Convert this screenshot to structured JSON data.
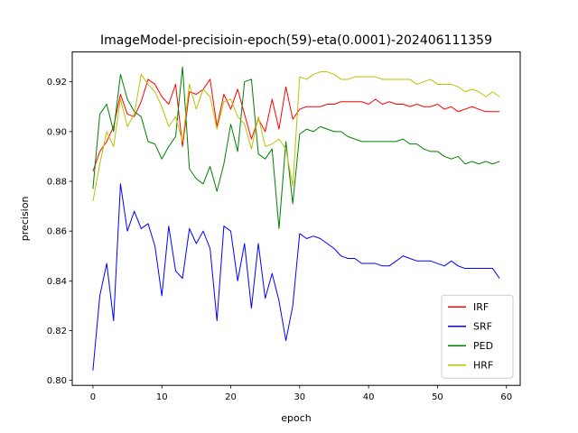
{
  "chart_data": {
    "type": "line",
    "title": "ImageModel-precisioin-epoch(59)-eta(0.0001)-202406111359",
    "xlabel": "epoch",
    "ylabel": "precision",
    "xlim": [
      -3,
      62
    ],
    "ylim": [
      0.798,
      0.932
    ],
    "xticks": [
      0,
      10,
      20,
      30,
      40,
      50,
      60
    ],
    "yticks": [
      0.8,
      0.82,
      0.84,
      0.86,
      0.88,
      0.9,
      0.92
    ],
    "ytick_labels": [
      "0.80",
      "0.82",
      "0.84",
      "0.86",
      "0.88",
      "0.90",
      "0.92"
    ],
    "grid": false,
    "legend": "lower-right",
    "x": [
      0,
      1,
      2,
      3,
      4,
      5,
      6,
      7,
      8,
      9,
      10,
      11,
      12,
      13,
      14,
      15,
      16,
      17,
      18,
      19,
      20,
      21,
      22,
      23,
      24,
      25,
      26,
      27,
      28,
      29,
      30,
      31,
      32,
      33,
      34,
      35,
      36,
      37,
      38,
      39,
      40,
      41,
      42,
      43,
      44,
      45,
      46,
      47,
      48,
      49,
      50,
      51,
      52,
      53,
      54,
      55,
      56,
      57,
      58,
      59
    ],
    "series": [
      {
        "name": "IRF",
        "color": "#ff0000",
        "values": [
          0.884,
          0.892,
          0.896,
          0.902,
          0.915,
          0.907,
          0.906,
          0.912,
          0.921,
          0.919,
          0.914,
          0.911,
          0.919,
          0.894,
          0.916,
          0.915,
          0.917,
          0.921,
          0.902,
          0.915,
          0.909,
          0.917,
          0.907,
          0.897,
          0.905,
          0.9,
          0.913,
          0.901,
          0.918,
          0.905,
          0.909,
          0.91,
          0.91,
          0.91,
          0.911,
          0.911,
          0.912,
          0.912,
          0.912,
          0.912,
          0.911,
          0.913,
          0.911,
          0.912,
          0.911,
          0.911,
          0.91,
          0.911,
          0.91,
          0.91,
          0.911,
          0.909,
          0.91,
          0.908,
          0.909,
          0.91,
          0.909,
          0.908,
          0.908,
          0.908
        ]
      },
      {
        "name": "SRF",
        "color": "#0000ff",
        "values": [
          0.804,
          0.834,
          0.847,
          0.824,
          0.879,
          0.86,
          0.868,
          0.861,
          0.863,
          0.854,
          0.834,
          0.862,
          0.844,
          0.841,
          0.861,
          0.855,
          0.86,
          0.853,
          0.824,
          0.862,
          0.86,
          0.84,
          0.855,
          0.829,
          0.855,
          0.833,
          0.843,
          0.832,
          0.816,
          0.83,
          0.859,
          0.857,
          0.858,
          0.857,
          0.855,
          0.853,
          0.85,
          0.849,
          0.849,
          0.847,
          0.847,
          0.847,
          0.846,
          0.846,
          0.848,
          0.85,
          0.849,
          0.848,
          0.848,
          0.848,
          0.847,
          0.846,
          0.848,
          0.846,
          0.845,
          0.845,
          0.845,
          0.845,
          0.845,
          0.841
        ]
      },
      {
        "name": "PED",
        "color": "#008000",
        "values": [
          0.877,
          0.907,
          0.911,
          0.9,
          0.923,
          0.913,
          0.908,
          0.906,
          0.896,
          0.895,
          0.889,
          0.894,
          0.898,
          0.926,
          0.885,
          0.881,
          0.879,
          0.886,
          0.876,
          0.887,
          0.903,
          0.892,
          0.92,
          0.921,
          0.891,
          0.889,
          0.893,
          0.861,
          0.896,
          0.871,
          0.899,
          0.901,
          0.9,
          0.902,
          0.901,
          0.9,
          0.9,
          0.898,
          0.897,
          0.896,
          0.896,
          0.896,
          0.896,
          0.896,
          0.896,
          0.897,
          0.895,
          0.895,
          0.893,
          0.892,
          0.892,
          0.89,
          0.889,
          0.89,
          0.887,
          0.888,
          0.887,
          0.888,
          0.887,
          0.888
        ]
      },
      {
        "name": "HRF",
        "color": "#bfbf00",
        "values": [
          0.872,
          0.887,
          0.9,
          0.894,
          0.913,
          0.902,
          0.907,
          0.923,
          0.919,
          0.916,
          0.91,
          0.902,
          0.906,
          0.896,
          0.919,
          0.909,
          0.917,
          0.914,
          0.901,
          0.912,
          0.913,
          0.906,
          0.903,
          0.893,
          0.906,
          0.894,
          0.895,
          0.897,
          0.893,
          0.878,
          0.922,
          0.921,
          0.923,
          0.924,
          0.924,
          0.923,
          0.921,
          0.921,
          0.922,
          0.922,
          0.922,
          0.922,
          0.921,
          0.921,
          0.921,
          0.921,
          0.921,
          0.919,
          0.92,
          0.921,
          0.919,
          0.919,
          0.919,
          0.918,
          0.916,
          0.917,
          0.916,
          0.914,
          0.916,
          0.914
        ]
      }
    ]
  }
}
